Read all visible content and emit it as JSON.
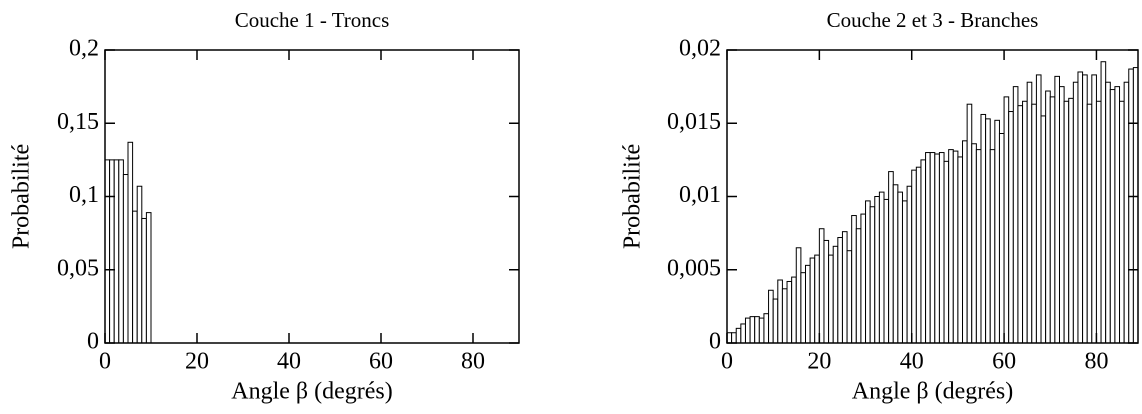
{
  "chart_data": [
    {
      "type": "histogram",
      "title": "Couche 1 - Troncs",
      "xlabel": "Angle  β (degrés)",
      "ylabel": "Probabilité",
      "bins": [
        0,
        1,
        2,
        3,
        4,
        5,
        6,
        7,
        8,
        9,
        10
      ],
      "values": [
        0.125,
        0.125,
        0.125,
        0.125,
        0.115,
        0.137,
        0.09,
        0.107,
        0.085,
        0.089
      ],
      "color": "#ffffff",
      "xlim": [
        0,
        90
      ],
      "xticks": [
        0,
        20,
        40,
        60,
        80
      ],
      "ylim": [
        0,
        0.2
      ],
      "yticks": [
        0,
        {
          "value": 0.05,
          "label": "0,05"
        },
        {
          "value": 0.1,
          "label": "0,1"
        },
        {
          "value": 0.15,
          "label": "0,15"
        },
        {
          "value": 0.2,
          "label": "0,2"
        }
      ]
    },
    {
      "type": "histogram",
      "title": "Couche 2 et 3 - Branches",
      "xlabel": "Angle  β  (degrés)",
      "ylabel": "Probabilité",
      "bins": [
        0,
        1,
        2,
        3,
        4,
        5,
        6,
        7,
        8,
        9,
        10,
        11,
        12,
        13,
        14,
        15,
        16,
        17,
        18,
        19,
        20,
        21,
        22,
        23,
        24,
        25,
        26,
        27,
        28,
        29,
        30,
        31,
        32,
        33,
        34,
        35,
        36,
        37,
        38,
        39,
        40,
        41,
        42,
        43,
        44,
        45,
        46,
        47,
        48,
        49,
        50,
        51,
        52,
        53,
        54,
        55,
        56,
        57,
        58,
        59,
        60,
        61,
        62,
        63,
        64,
        65,
        66,
        67,
        68,
        69,
        70,
        71,
        72,
        73,
        74,
        75,
        76,
        77,
        78,
        79,
        80,
        81,
        82,
        83,
        84,
        85,
        86,
        87,
        88,
        89
      ],
      "values": [
        0.0007,
        0.0007,
        0.001,
        0.0013,
        0.0017,
        0.0018,
        0.0018,
        0.0017,
        0.002,
        0.0036,
        0.003,
        0.0043,
        0.0037,
        0.0042,
        0.0045,
        0.0065,
        0.0048,
        0.0053,
        0.0058,
        0.006,
        0.0078,
        0.007,
        0.006,
        0.0066,
        0.0072,
        0.0076,
        0.0063,
        0.0087,
        0.0078,
        0.0088,
        0.0097,
        0.0093,
        0.01,
        0.0103,
        0.0098,
        0.0117,
        0.0108,
        0.0103,
        0.0097,
        0.0107,
        0.0118,
        0.012,
        0.0125,
        0.013,
        0.013,
        0.0129,
        0.013,
        0.0124,
        0.0132,
        0.0131,
        0.0127,
        0.0138,
        0.0163,
        0.0136,
        0.0132,
        0.0156,
        0.0153,
        0.0132,
        0.0152,
        0.0143,
        0.0168,
        0.0158,
        0.0175,
        0.0162,
        0.0165,
        0.0178,
        0.0163,
        0.0183,
        0.0155,
        0.0172,
        0.0168,
        0.0182,
        0.0175,
        0.0165,
        0.0167,
        0.0178,
        0.0185,
        0.0183,
        0.0163,
        0.0183,
        0.0165,
        0.0192,
        0.0178,
        0.0173,
        0.0175,
        0.0165,
        0.0178,
        0.0187,
        0.0188
      ],
      "color": "#ffffff",
      "xlim": [
        0,
        89
      ],
      "xticks": [
        0,
        20,
        40,
        60,
        80
      ],
      "ylim": [
        0,
        0.02
      ],
      "yticks": [
        0,
        {
          "value": 0.005,
          "label": "0,005"
        },
        {
          "value": 0.01,
          "label": "0,01"
        },
        {
          "value": 0.015,
          "label": "0,015"
        },
        {
          "value": 0.02,
          "label": "0,02"
        }
      ]
    }
  ]
}
